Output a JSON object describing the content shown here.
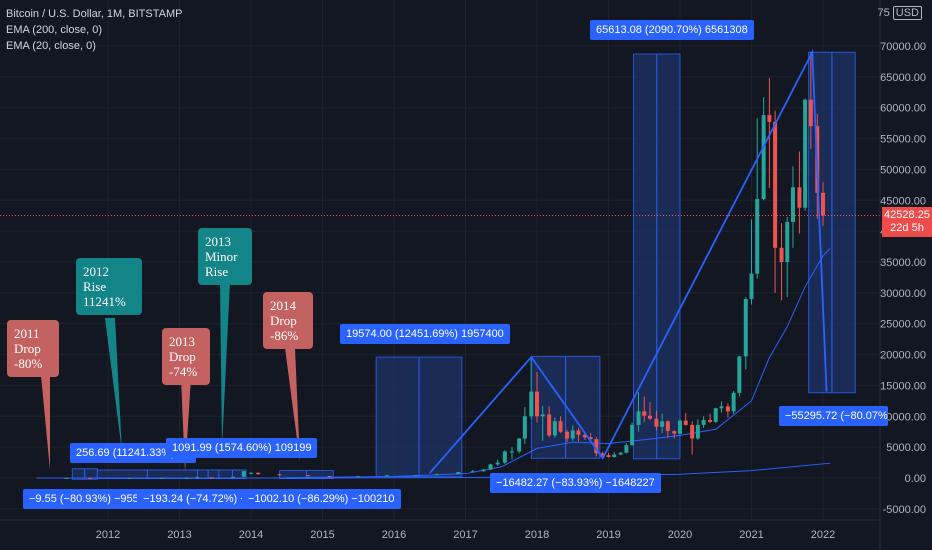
{
  "header": {
    "symbol": "Bitcoin / U.S. Dollar, 1M, BITSTAMP",
    "ema200": "EMA (200, close, 0)",
    "ema20": "EMA (20, close, 0)",
    "currency_prefix": "75",
    "currency": "USD"
  },
  "price_tag": {
    "price": "42528.25",
    "countdown": "22d 5h"
  },
  "callouts": {
    "c2011": "2011\nDrop\n-80%",
    "c2012": "2012\nRise\n11241%",
    "c2013a": "2013\nDrop\n-74%",
    "c2013b": "2013\nMinor\nRise",
    "c2014": "2014\nDrop\n-86%"
  },
  "measures": {
    "m1": "−9.55 (−80.93%) −955",
    "m2": "256.69 (11241.33%) 25",
    "m3": "−193.24 (−74.72%) −1932",
    "m4": "1091.99 (1574.60%) 109199",
    "m5": "−1002.10 (−86.29%) −100210",
    "m6": "19574.00 (12451.69%) 1957400",
    "m7": "−16482.27 (−83.93%) −1648227",
    "m8": "65613.08 (2090.70%) 6561308",
    "m9": "−55295.72 (−80.07%) −5"
  },
  "colors": {
    "background": "#131722",
    "up": "#26a69a",
    "down": "#ef5350",
    "ema": "#2962ff",
    "measure_fill": "#1e3467",
    "text": "#b2b5be"
  },
  "chart_data": {
    "type": "candlestick",
    "title": "Bitcoin / U.S. Dollar, 1M, BITSTAMP",
    "ylim": [
      -6000,
      75000
    ],
    "xlim": [
      2011.0,
      2022.9
    ],
    "y_ticks": [
      "-5000.00",
      "0.00",
      "5000.00",
      "10000.00",
      "15000.00",
      "20000.00",
      "25000.00",
      "30000.00",
      "35000.00",
      "40000.00",
      "45000.00",
      "50000.00",
      "55000.00",
      "60000.00",
      "65000.00",
      "70000.00"
    ],
    "x_ticks": [
      "2012",
      "2013",
      "2014",
      "2015",
      "2016",
      "2017",
      "2018",
      "2019",
      "2020",
      "2021",
      "2022"
    ],
    "last_price": 42528.25,
    "candles": [
      {
        "t": 2011.42,
        "o": 9,
        "h": 31,
        "l": 8,
        "c": 16
      },
      {
        "t": 2011.75,
        "o": 5,
        "h": 7,
        "l": 2,
        "c": 3
      },
      {
        "t": 2012.3,
        "o": 5,
        "h": 7,
        "l": 4,
        "c": 5
      },
      {
        "t": 2012.75,
        "o": 12,
        "h": 14,
        "l": 10,
        "c": 13
      },
      {
        "t": 2013.1,
        "o": 20,
        "h": 35,
        "l": 19,
        "c": 33
      },
      {
        "t": 2013.25,
        "o": 93,
        "h": 260,
        "l": 50,
        "c": 140
      },
      {
        "t": 2013.45,
        "o": 110,
        "h": 130,
        "l": 95,
        "c": 100
      },
      {
        "t": 2013.75,
        "o": 140,
        "h": 210,
        "l": 120,
        "c": 200
      },
      {
        "t": 2013.9,
        "o": 200,
        "h": 1160,
        "l": 190,
        "c": 1100
      },
      {
        "t": 2014.0,
        "o": 730,
        "h": 1000,
        "l": 600,
        "c": 850
      },
      {
        "t": 2014.1,
        "o": 850,
        "h": 900,
        "l": 550,
        "c": 600
      },
      {
        "t": 2014.4,
        "o": 600,
        "h": 670,
        "l": 420,
        "c": 450
      },
      {
        "t": 2014.8,
        "o": 450,
        "h": 500,
        "l": 300,
        "c": 320
      },
      {
        "t": 2015.1,
        "o": 320,
        "h": 330,
        "l": 160,
        "c": 230
      },
      {
        "t": 2015.5,
        "o": 230,
        "h": 310,
        "l": 200,
        "c": 280
      },
      {
        "t": 2015.9,
        "o": 280,
        "h": 500,
        "l": 270,
        "c": 430
      },
      {
        "t": 2016.3,
        "o": 430,
        "h": 470,
        "l": 380,
        "c": 450
      },
      {
        "t": 2016.6,
        "o": 450,
        "h": 780,
        "l": 440,
        "c": 620
      },
      {
        "t": 2016.9,
        "o": 620,
        "h": 1000,
        "l": 600,
        "c": 960
      },
      {
        "t": 2017.1,
        "o": 960,
        "h": 1300,
        "l": 900,
        "c": 1100
      },
      {
        "t": 2017.25,
        "o": 1100,
        "h": 1450,
        "l": 1000,
        "c": 1350
      },
      {
        "t": 2017.35,
        "o": 1350,
        "h": 2300,
        "l": 1300,
        "c": 2200
      },
      {
        "t": 2017.45,
        "o": 2200,
        "h": 3000,
        "l": 2000,
        "c": 2500
      },
      {
        "t": 2017.55,
        "o": 2500,
        "h": 4500,
        "l": 2300,
        "c": 4300
      },
      {
        "t": 2017.65,
        "o": 4300,
        "h": 5000,
        "l": 3000,
        "c": 4300
      },
      {
        "t": 2017.75,
        "o": 4300,
        "h": 6500,
        "l": 4000,
        "c": 6400
      },
      {
        "t": 2017.83,
        "o": 6400,
        "h": 11500,
        "l": 5500,
        "c": 10000
      },
      {
        "t": 2017.92,
        "o": 10000,
        "h": 19700,
        "l": 9500,
        "c": 14000
      },
      {
        "t": 2018.0,
        "o": 14000,
        "h": 17200,
        "l": 9000,
        "c": 10000
      },
      {
        "t": 2018.08,
        "o": 10000,
        "h": 11700,
        "l": 6000,
        "c": 10300
      },
      {
        "t": 2018.17,
        "o": 10300,
        "h": 11600,
        "l": 6600,
        "c": 6900
      },
      {
        "t": 2018.25,
        "o": 6900,
        "h": 9800,
        "l": 6500,
        "c": 9200
      },
      {
        "t": 2018.33,
        "o": 9200,
        "h": 10000,
        "l": 7300,
        "c": 7500
      },
      {
        "t": 2018.42,
        "o": 7500,
        "h": 7800,
        "l": 5800,
        "c": 6400
      },
      {
        "t": 2018.5,
        "o": 6400,
        "h": 8500,
        "l": 6000,
        "c": 7700
      },
      {
        "t": 2018.58,
        "o": 7700,
        "h": 8200,
        "l": 5900,
        "c": 7000
      },
      {
        "t": 2018.67,
        "o": 7000,
        "h": 7400,
        "l": 6200,
        "c": 6600
      },
      {
        "t": 2018.75,
        "o": 6600,
        "h": 7300,
        "l": 6200,
        "c": 6300
      },
      {
        "t": 2018.83,
        "o": 6300,
        "h": 6600,
        "l": 3500,
        "c": 4000
      },
      {
        "t": 2018.92,
        "o": 4000,
        "h": 4300,
        "l": 3100,
        "c": 3700
      },
      {
        "t": 2019.0,
        "o": 3700,
        "h": 4100,
        "l": 3300,
        "c": 3400
      },
      {
        "t": 2019.08,
        "o": 3400,
        "h": 4200,
        "l": 3300,
        "c": 3800
      },
      {
        "t": 2019.17,
        "o": 3800,
        "h": 4200,
        "l": 3700,
        "c": 4100
      },
      {
        "t": 2019.25,
        "o": 4100,
        "h": 5600,
        "l": 4000,
        "c": 5300
      },
      {
        "t": 2019.33,
        "o": 5300,
        "h": 9000,
        "l": 5300,
        "c": 8600
      },
      {
        "t": 2019.42,
        "o": 8600,
        "h": 13900,
        "l": 7500,
        "c": 10800
      },
      {
        "t": 2019.5,
        "o": 10800,
        "h": 13200,
        "l": 9100,
        "c": 10100
      },
      {
        "t": 2019.58,
        "o": 10100,
        "h": 12300,
        "l": 9400,
        "c": 9600
      },
      {
        "t": 2019.67,
        "o": 9600,
        "h": 10900,
        "l": 7700,
        "c": 8300
      },
      {
        "t": 2019.75,
        "o": 8300,
        "h": 10400,
        "l": 7300,
        "c": 9200
      },
      {
        "t": 2019.83,
        "o": 9200,
        "h": 9300,
        "l": 6500,
        "c": 7600
      },
      {
        "t": 2019.92,
        "o": 7600,
        "h": 7700,
        "l": 6400,
        "c": 7200
      },
      {
        "t": 2020.0,
        "o": 7200,
        "h": 9600,
        "l": 6900,
        "c": 9300
      },
      {
        "t": 2020.08,
        "o": 9300,
        "h": 10500,
        "l": 8500,
        "c": 8600
      },
      {
        "t": 2020.17,
        "o": 8600,
        "h": 9200,
        "l": 3800,
        "c": 6400
      },
      {
        "t": 2020.25,
        "o": 6400,
        "h": 9500,
        "l": 6200,
        "c": 8600
      },
      {
        "t": 2020.33,
        "o": 8600,
        "h": 10000,
        "l": 8100,
        "c": 9400
      },
      {
        "t": 2020.42,
        "o": 9400,
        "h": 10400,
        "l": 8900,
        "c": 9100
      },
      {
        "t": 2020.5,
        "o": 9100,
        "h": 11400,
        "l": 8900,
        "c": 11300
      },
      {
        "t": 2020.58,
        "o": 11300,
        "h": 12400,
        "l": 10600,
        "c": 11600
      },
      {
        "t": 2020.67,
        "o": 11600,
        "h": 12100,
        "l": 9800,
        "c": 10800
      },
      {
        "t": 2020.75,
        "o": 10800,
        "h": 14100,
        "l": 10400,
        "c": 13800
      },
      {
        "t": 2020.83,
        "o": 13800,
        "h": 19800,
        "l": 13200,
        "c": 19700
      },
      {
        "t": 2020.92,
        "o": 19700,
        "h": 29300,
        "l": 17600,
        "c": 29000
      },
      {
        "t": 2021.0,
        "o": 29000,
        "h": 41900,
        "l": 28100,
        "c": 33100
      },
      {
        "t": 2021.08,
        "o": 33100,
        "h": 58300,
        "l": 32300,
        "c": 45200
      },
      {
        "t": 2021.17,
        "o": 45200,
        "h": 61700,
        "l": 45000,
        "c": 58800
      },
      {
        "t": 2021.25,
        "o": 58800,
        "h": 64800,
        "l": 47000,
        "c": 57700
      },
      {
        "t": 2021.33,
        "o": 57700,
        "h": 59500,
        "l": 30000,
        "c": 37300
      },
      {
        "t": 2021.42,
        "o": 37300,
        "h": 41300,
        "l": 28800,
        "c": 35000
      },
      {
        "t": 2021.5,
        "o": 35000,
        "h": 42300,
        "l": 29300,
        "c": 41500
      },
      {
        "t": 2021.58,
        "o": 41500,
        "h": 50500,
        "l": 37300,
        "c": 47100
      },
      {
        "t": 2021.67,
        "o": 47100,
        "h": 52900,
        "l": 39600,
        "c": 43800
      },
      {
        "t": 2021.75,
        "o": 43800,
        "h": 61500,
        "l": 43300,
        "c": 61300
      },
      {
        "t": 2021.83,
        "o": 61300,
        "h": 69000,
        "l": 53300,
        "c": 57000
      },
      {
        "t": 2021.92,
        "o": 57000,
        "h": 59000,
        "l": 42000,
        "c": 46200
      },
      {
        "t": 2022.0,
        "o": 46200,
        "h": 47900,
        "l": 40800,
        "c": 42528
      }
    ],
    "ema20": [
      [
        2014.5,
        60
      ],
      [
        2016.0,
        250
      ],
      [
        2017.0,
        700
      ],
      [
        2017.5,
        1800
      ],
      [
        2018.0,
        4800
      ],
      [
        2018.5,
        5800
      ],
      [
        2019.0,
        5600
      ],
      [
        2019.5,
        6200
      ],
      [
        2020.0,
        6900
      ],
      [
        2020.5,
        7900
      ],
      [
        2021.0,
        12500
      ],
      [
        2021.25,
        19500
      ],
      [
        2021.5,
        24500
      ],
      [
        2021.75,
        31000
      ],
      [
        2022.0,
        36000
      ],
      [
        2022.1,
        37200
      ]
    ],
    "ema200": [
      [
        2011.0,
        0
      ],
      [
        2015.0,
        10
      ],
      [
        2017.0,
        80
      ],
      [
        2018.5,
        300
      ],
      [
        2020.0,
        600
      ],
      [
        2021.0,
        1200
      ],
      [
        2022.1,
        2400
      ]
    ],
    "trend_lines": [
      [
        [
          2016.5,
          800
        ],
        [
          2017.92,
          19600
        ],
        [
          2018.92,
          3200
        ],
        [
          2021.85,
          69000
        ],
        [
          2022.05,
          14000
        ]
      ]
    ],
    "measure_boxes": [
      {
        "x1": 2011.5,
        "x2": 2011.85,
        "y1": 1500,
        "y2": -200
      },
      {
        "x1": 2011.85,
        "x2": 2013.25,
        "y1": 1300,
        "y2": -100
      },
      {
        "x1": 2013.25,
        "x2": 2013.55,
        "y1": 1300,
        "y2": -100
      },
      {
        "x1": 2013.55,
        "x2": 2013.93,
        "y1": 1300,
        "y2": -100
      },
      {
        "x1": 2014.4,
        "x2": 2015.15,
        "y1": 1200,
        "y2": -100
      },
      {
        "x1": 2015.75,
        "x2": 2016.95,
        "y1": 19600,
        "y2": 200
      },
      {
        "x1": 2017.92,
        "x2": 2018.88,
        "y1": 19700,
        "y2": 3200
      },
      {
        "x1": 2019.35,
        "x2": 2020.0,
        "y1": 68700,
        "y2": 3100
      },
      {
        "x1": 2021.8,
        "x2": 2022.45,
        "y1": 69000,
        "y2": 13800
      }
    ]
  }
}
